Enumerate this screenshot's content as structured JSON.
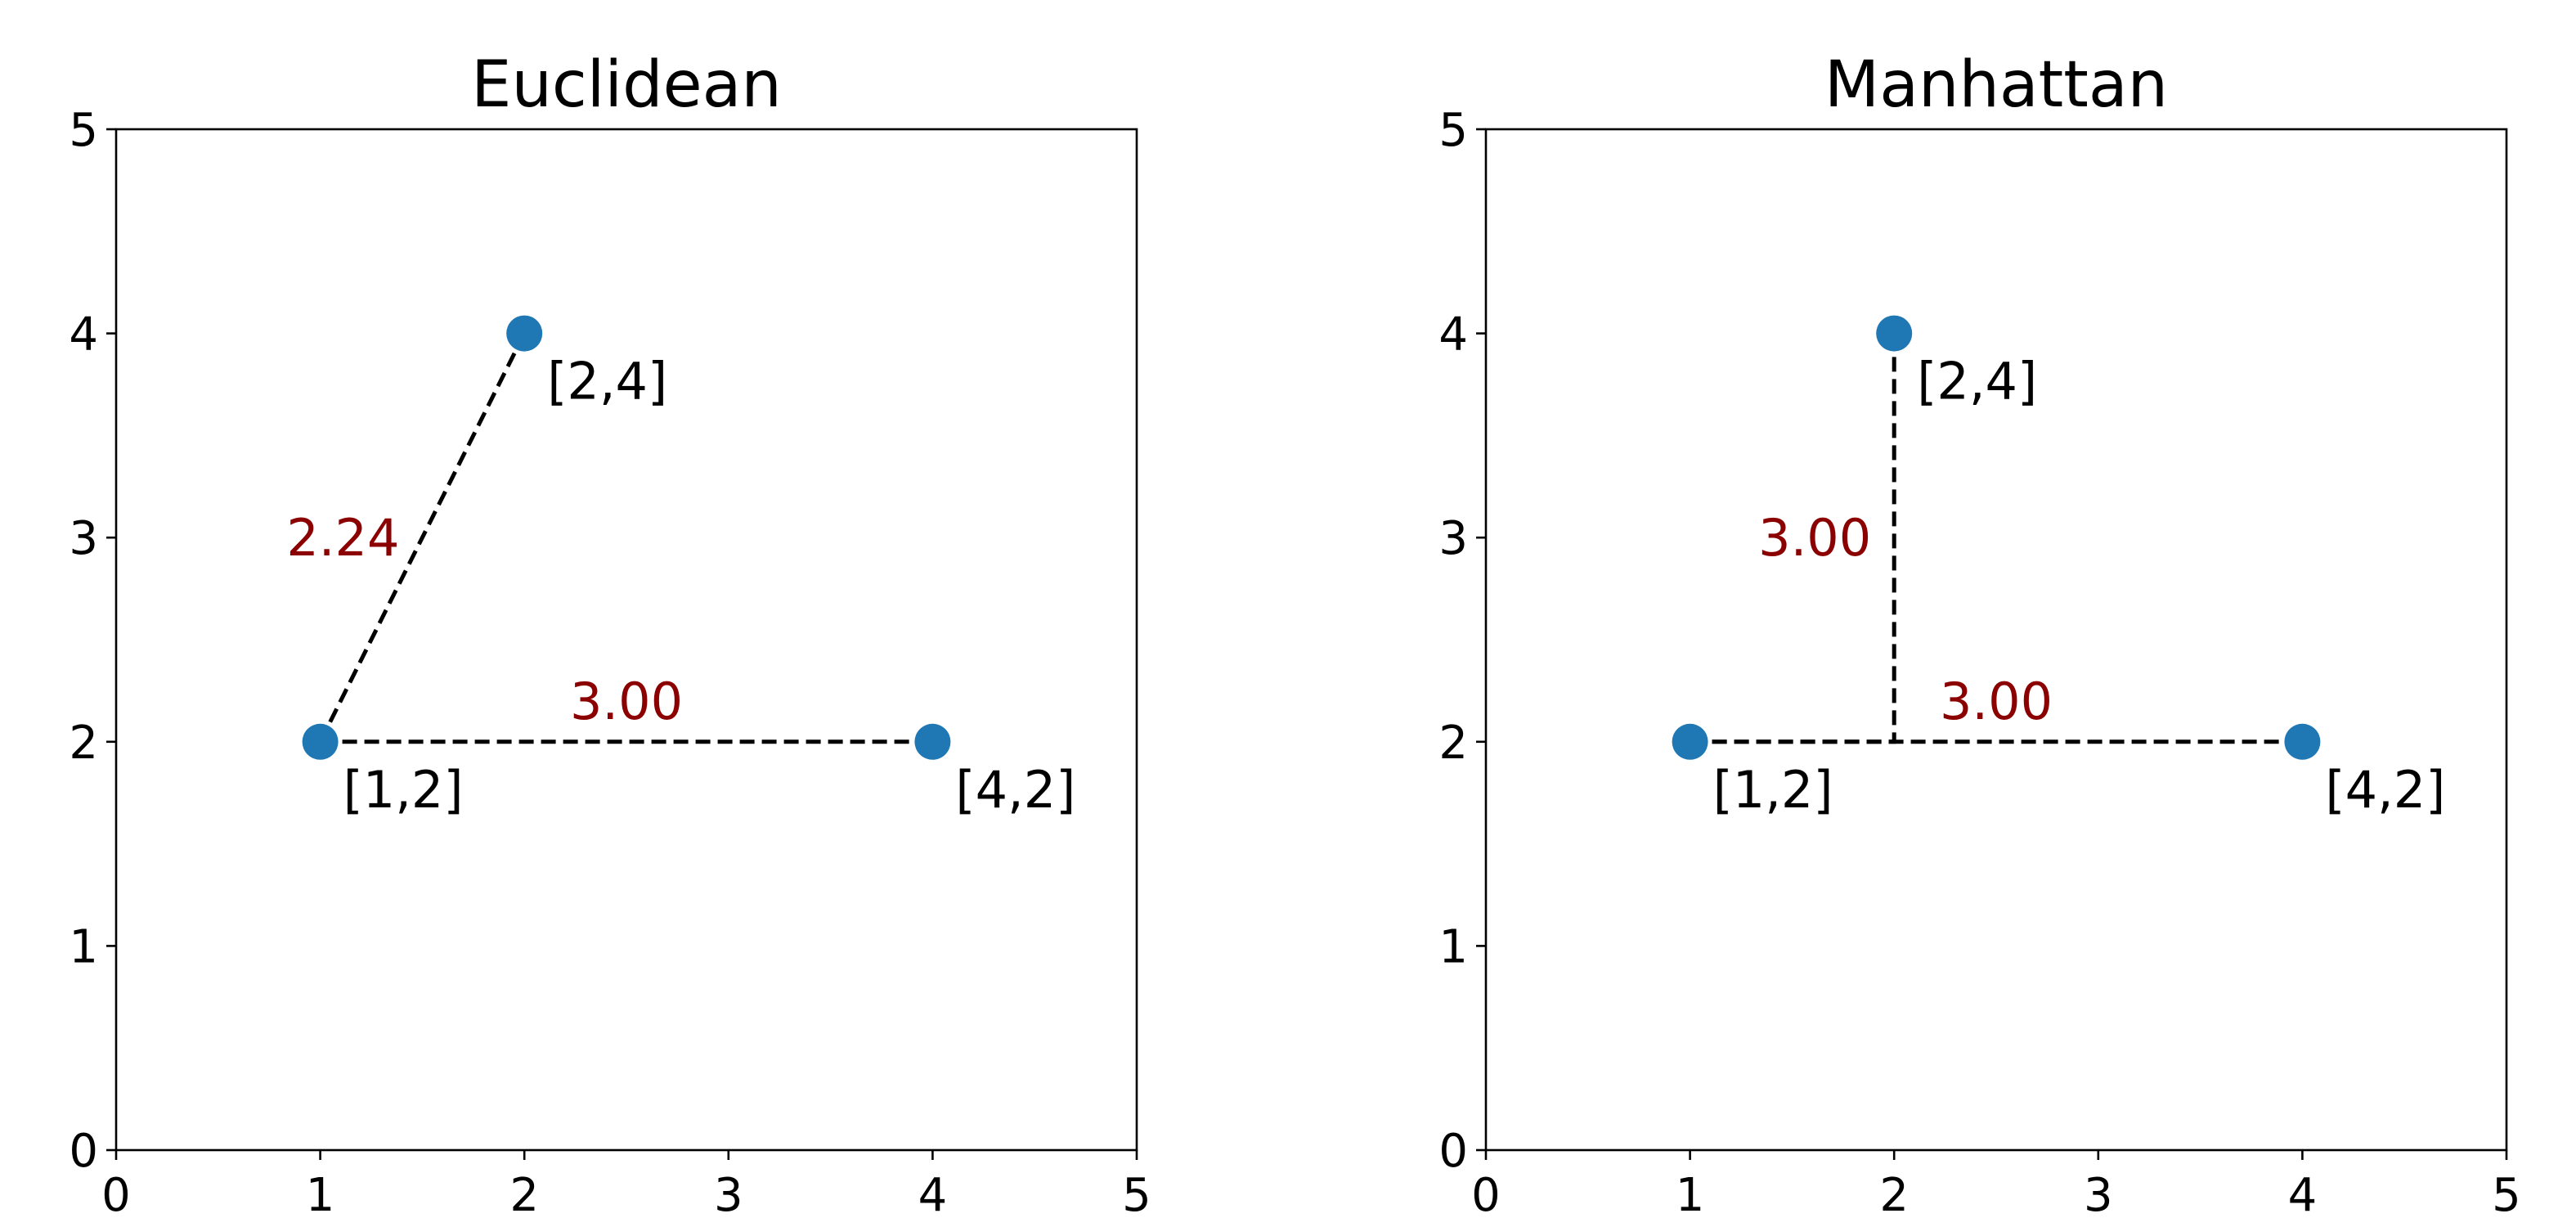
{
  "chart_data": [
    {
      "type": "scatter",
      "title": "Euclidean",
      "xlim": [
        0,
        5
      ],
      "ylim": [
        0,
        5
      ],
      "x_ticks": [
        "0",
        "1",
        "2",
        "3",
        "4",
        "5"
      ],
      "y_ticks": [
        "0",
        "1",
        "2",
        "3",
        "4",
        "5"
      ],
      "grid": false,
      "points": [
        {
          "x": 1,
          "y": 2,
          "label": "[1,2]"
        },
        {
          "x": 2,
          "y": 4,
          "label": "[2,4]"
        },
        {
          "x": 4,
          "y": 2,
          "label": "[4,2]"
        }
      ],
      "segments": [
        {
          "path": [
            [
              1,
              2
            ],
            [
              2,
              4
            ]
          ],
          "distance": "2.24"
        },
        {
          "path": [
            [
              1,
              2
            ],
            [
              4,
              2
            ]
          ],
          "distance": "3.00"
        }
      ]
    },
    {
      "type": "scatter",
      "title": "Manhattan",
      "xlim": [
        0,
        5
      ],
      "ylim": [
        0,
        5
      ],
      "x_ticks": [
        "0",
        "1",
        "2",
        "3",
        "4",
        "5"
      ],
      "y_ticks": [
        "0",
        "1",
        "2",
        "3",
        "4",
        "5"
      ],
      "grid": false,
      "points": [
        {
          "x": 1,
          "y": 2,
          "label": "[1,2]"
        },
        {
          "x": 2,
          "y": 4,
          "label": "[2,4]"
        },
        {
          "x": 4,
          "y": 2,
          "label": "[4,2]"
        }
      ],
      "segments": [
        {
          "path": [
            [
              1,
              2
            ],
            [
              2,
              2
            ],
            [
              2,
              4
            ]
          ],
          "distance": "3.00"
        },
        {
          "path": [
            [
              1,
              2
            ],
            [
              4,
              2
            ]
          ],
          "distance": "3.00"
        }
      ]
    }
  ],
  "colors": {
    "point": "#1f77b4",
    "distance_label": "#8b0000",
    "line": "#000000"
  }
}
